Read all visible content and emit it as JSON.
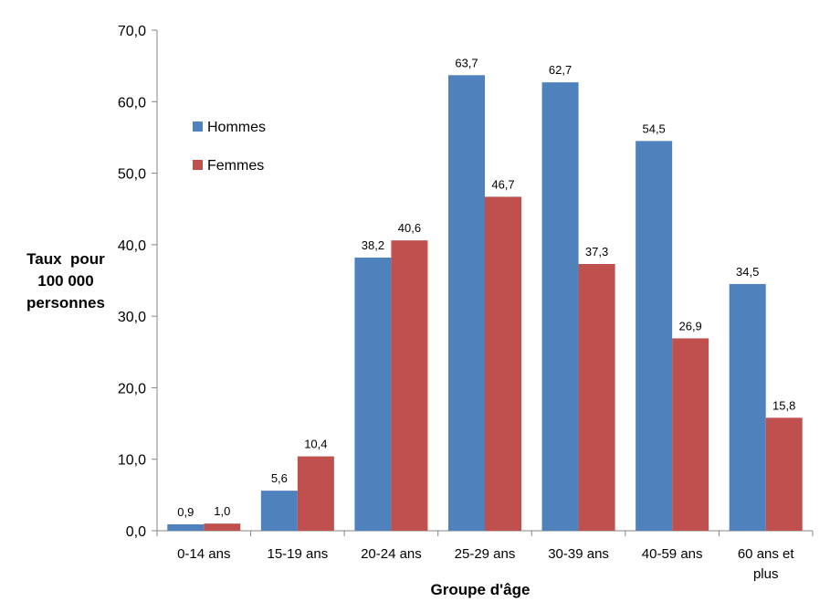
{
  "chart_data": {
    "type": "bar",
    "title": "",
    "ylabel": [
      "Taux  pour",
      "100 000",
      "personnes"
    ],
    "xlabel": "Groupe d'âge",
    "categories": [
      [
        "0-14 ans"
      ],
      [
        "15-19 ans"
      ],
      [
        "20-24 ans"
      ],
      [
        "25-29 ans"
      ],
      [
        "30-39 ans"
      ],
      [
        "40-59 ans"
      ],
      [
        "60 ans et",
        "plus"
      ]
    ],
    "ylim": [
      0,
      70
    ],
    "yticks": [
      0,
      10,
      20,
      30,
      40,
      50,
      60,
      70
    ],
    "ytick_labels": [
      "0,0",
      "10,0",
      "20,0",
      "30,0",
      "40,0",
      "50,0",
      "60,0",
      "70,0"
    ],
    "legend_position": "top-left",
    "series": [
      {
        "name": "Hommes",
        "color": "#4F81BD",
        "values": [
          0.9,
          5.6,
          38.2,
          63.7,
          62.7,
          54.5,
          34.5
        ],
        "labels": [
          "0,9",
          "5,6",
          "38,2",
          "63,7",
          "62,7",
          "54,5",
          "34,5"
        ]
      },
      {
        "name": "Femmes",
        "color": "#C0504D",
        "values": [
          1.0,
          10.4,
          40.6,
          46.7,
          37.3,
          26.9,
          15.8
        ],
        "labels": [
          "1,0",
          "10,4",
          "40,6",
          "46,7",
          "37,3",
          "26,9",
          "15,8"
        ]
      }
    ]
  }
}
